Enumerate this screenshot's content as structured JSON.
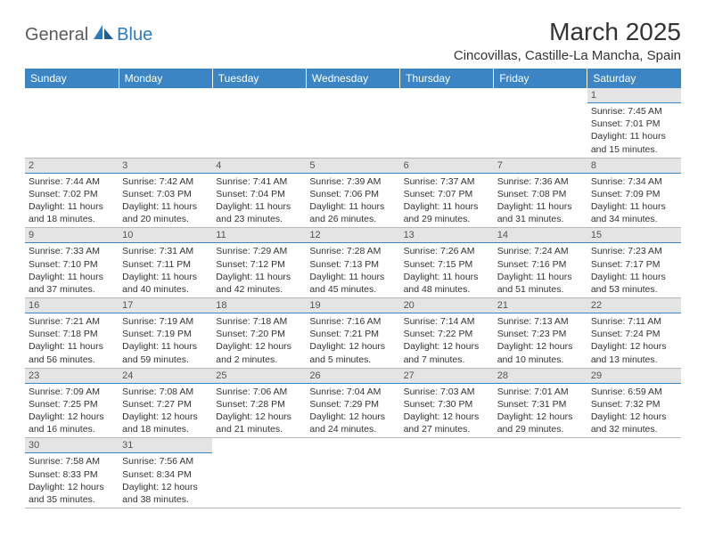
{
  "brand": {
    "part1": "General",
    "part2": "Blue"
  },
  "title": "March 2025",
  "location": "Cincovillas, Castille-La Mancha, Spain",
  "colors": {
    "header_bg": "#3b85c4",
    "header_text": "#ffffff",
    "dayhead_bg": "#e4e4e4",
    "divider": "#3b85c4",
    "logo_accent": "#2b7bbf",
    "logo_gray": "#5a5a5a"
  },
  "dayNames": [
    "Sunday",
    "Monday",
    "Tuesday",
    "Wednesday",
    "Thursday",
    "Friday",
    "Saturday"
  ],
  "weeks": [
    [
      null,
      null,
      null,
      null,
      null,
      null,
      {
        "n": "1",
        "sr": "7:45 AM",
        "ss": "7:01 PM",
        "dl": "11 hours and 15 minutes."
      }
    ],
    [
      {
        "n": "2",
        "sr": "7:44 AM",
        "ss": "7:02 PM",
        "dl": "11 hours and 18 minutes."
      },
      {
        "n": "3",
        "sr": "7:42 AM",
        "ss": "7:03 PM",
        "dl": "11 hours and 20 minutes."
      },
      {
        "n": "4",
        "sr": "7:41 AM",
        "ss": "7:04 PM",
        "dl": "11 hours and 23 minutes."
      },
      {
        "n": "5",
        "sr": "7:39 AM",
        "ss": "7:06 PM",
        "dl": "11 hours and 26 minutes."
      },
      {
        "n": "6",
        "sr": "7:37 AM",
        "ss": "7:07 PM",
        "dl": "11 hours and 29 minutes."
      },
      {
        "n": "7",
        "sr": "7:36 AM",
        "ss": "7:08 PM",
        "dl": "11 hours and 31 minutes."
      },
      {
        "n": "8",
        "sr": "7:34 AM",
        "ss": "7:09 PM",
        "dl": "11 hours and 34 minutes."
      }
    ],
    [
      {
        "n": "9",
        "sr": "7:33 AM",
        "ss": "7:10 PM",
        "dl": "11 hours and 37 minutes."
      },
      {
        "n": "10",
        "sr": "7:31 AM",
        "ss": "7:11 PM",
        "dl": "11 hours and 40 minutes."
      },
      {
        "n": "11",
        "sr": "7:29 AM",
        "ss": "7:12 PM",
        "dl": "11 hours and 42 minutes."
      },
      {
        "n": "12",
        "sr": "7:28 AM",
        "ss": "7:13 PM",
        "dl": "11 hours and 45 minutes."
      },
      {
        "n": "13",
        "sr": "7:26 AM",
        "ss": "7:15 PM",
        "dl": "11 hours and 48 minutes."
      },
      {
        "n": "14",
        "sr": "7:24 AM",
        "ss": "7:16 PM",
        "dl": "11 hours and 51 minutes."
      },
      {
        "n": "15",
        "sr": "7:23 AM",
        "ss": "7:17 PM",
        "dl": "11 hours and 53 minutes."
      }
    ],
    [
      {
        "n": "16",
        "sr": "7:21 AM",
        "ss": "7:18 PM",
        "dl": "11 hours and 56 minutes."
      },
      {
        "n": "17",
        "sr": "7:19 AM",
        "ss": "7:19 PM",
        "dl": "11 hours and 59 minutes."
      },
      {
        "n": "18",
        "sr": "7:18 AM",
        "ss": "7:20 PM",
        "dl": "12 hours and 2 minutes."
      },
      {
        "n": "19",
        "sr": "7:16 AM",
        "ss": "7:21 PM",
        "dl": "12 hours and 5 minutes."
      },
      {
        "n": "20",
        "sr": "7:14 AM",
        "ss": "7:22 PM",
        "dl": "12 hours and 7 minutes."
      },
      {
        "n": "21",
        "sr": "7:13 AM",
        "ss": "7:23 PM",
        "dl": "12 hours and 10 minutes."
      },
      {
        "n": "22",
        "sr": "7:11 AM",
        "ss": "7:24 PM",
        "dl": "12 hours and 13 minutes."
      }
    ],
    [
      {
        "n": "23",
        "sr": "7:09 AM",
        "ss": "7:25 PM",
        "dl": "12 hours and 16 minutes."
      },
      {
        "n": "24",
        "sr": "7:08 AM",
        "ss": "7:27 PM",
        "dl": "12 hours and 18 minutes."
      },
      {
        "n": "25",
        "sr": "7:06 AM",
        "ss": "7:28 PM",
        "dl": "12 hours and 21 minutes."
      },
      {
        "n": "26",
        "sr": "7:04 AM",
        "ss": "7:29 PM",
        "dl": "12 hours and 24 minutes."
      },
      {
        "n": "27",
        "sr": "7:03 AM",
        "ss": "7:30 PM",
        "dl": "12 hours and 27 minutes."
      },
      {
        "n": "28",
        "sr": "7:01 AM",
        "ss": "7:31 PM",
        "dl": "12 hours and 29 minutes."
      },
      {
        "n": "29",
        "sr": "6:59 AM",
        "ss": "7:32 PM",
        "dl": "12 hours and 32 minutes."
      }
    ],
    [
      {
        "n": "30",
        "sr": "7:58 AM",
        "ss": "8:33 PM",
        "dl": "12 hours and 35 minutes."
      },
      {
        "n": "31",
        "sr": "7:56 AM",
        "ss": "8:34 PM",
        "dl": "12 hours and 38 minutes."
      },
      null,
      null,
      null,
      null,
      null
    ]
  ],
  "labels": {
    "sunrise": "Sunrise:",
    "sunset": "Sunset:",
    "daylight": "Daylight:"
  }
}
